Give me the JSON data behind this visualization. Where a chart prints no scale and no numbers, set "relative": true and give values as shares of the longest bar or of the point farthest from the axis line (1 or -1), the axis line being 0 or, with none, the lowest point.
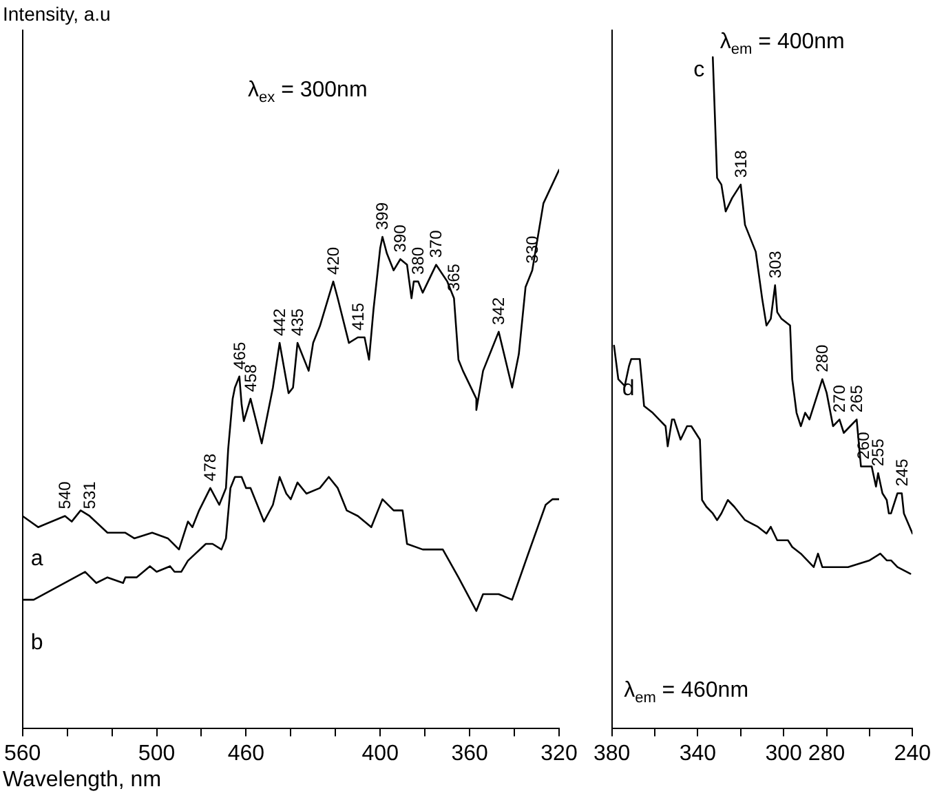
{
  "chart_data": [
    {
      "type": "line",
      "relative": true,
      "ylabel": "Intensity, a.u",
      "xlabel": "Wavelength, nm",
      "xlim": [
        560,
        320
      ],
      "tick_labels": "x",
      "grid": false,
      "legend": false,
      "marker": "none",
      "xticks": [
        560,
        {
          "value": 540,
          "label": null
        },
        {
          "value": 520,
          "label": null
        },
        500,
        {
          "value": 480,
          "label": null
        },
        460,
        {
          "value": 440,
          "label": null
        },
        {
          "value": 420,
          "label": null
        },
        400,
        {
          "value": 380,
          "label": null
        },
        360,
        {
          "value": 340,
          "label": null
        },
        320
      ],
      "series": [
        {
          "name": "a",
          "color": "#000000",
          "x": [
            560,
            553,
            541,
            538,
            534,
            530,
            522,
            514,
            510,
            502,
            495,
            490,
            486,
            484,
            481,
            476,
            472,
            469,
            468,
            466,
            465,
            463,
            462,
            461,
            458,
            453,
            448,
            445,
            441,
            439,
            437,
            432,
            430,
            427,
            421,
            419,
            414,
            410,
            407,
            405,
            403,
            400,
            399,
            397,
            394,
            391,
            388,
            386,
            385,
            383,
            381,
            375,
            370,
            367,
            365,
            363,
            357,
            357,
            354,
            347,
            341,
            338,
            335,
            332,
            327,
            320
          ],
          "values": [
            0.38,
            0.36,
            0.38,
            0.37,
            0.39,
            0.38,
            0.35,
            0.35,
            0.34,
            0.35,
            0.34,
            0.32,
            0.37,
            0.36,
            0.39,
            0.43,
            0.4,
            0.43,
            0.5,
            0.59,
            0.61,
            0.63,
            0.58,
            0.55,
            0.59,
            0.51,
            0.61,
            0.69,
            0.6,
            0.61,
            0.69,
            0.64,
            0.69,
            0.72,
            0.8,
            0.77,
            0.69,
            0.7,
            0.7,
            0.66,
            0.75,
            0.86,
            0.88,
            0.85,
            0.82,
            0.84,
            0.83,
            0.77,
            0.8,
            0.8,
            0.78,
            0.83,
            0.8,
            0.77,
            0.66,
            0.64,
            0.59,
            0.57,
            0.64,
            0.71,
            0.61,
            0.67,
            0.79,
            0.82,
            0.94,
            1.0
          ]
        },
        {
          "name": "b",
          "color": "#000000",
          "x": [
            560,
            555,
            532,
            527,
            522,
            515,
            514,
            509,
            503,
            500,
            494,
            492,
            489,
            486,
            478,
            475,
            471,
            469,
            467,
            465,
            462,
            460,
            458,
            452,
            448,
            445,
            442,
            440,
            437,
            433,
            427,
            423,
            419,
            415,
            410,
            404,
            399,
            394,
            390,
            388,
            381,
            372,
            365,
            357,
            354,
            347,
            341,
            334,
            326,
            323,
            320
          ],
          "values": [
            0.23,
            0.23,
            0.28,
            0.26,
            0.27,
            0.26,
            0.27,
            0.27,
            0.29,
            0.28,
            0.29,
            0.28,
            0.28,
            0.3,
            0.33,
            0.33,
            0.32,
            0.34,
            0.43,
            0.45,
            0.45,
            0.43,
            0.43,
            0.37,
            0.4,
            0.45,
            0.42,
            0.41,
            0.44,
            0.42,
            0.43,
            0.45,
            0.43,
            0.39,
            0.38,
            0.36,
            0.41,
            0.39,
            0.39,
            0.33,
            0.32,
            0.32,
            0.27,
            0.21,
            0.24,
            0.24,
            0.23,
            0.31,
            0.4,
            0.41,
            0.41
          ]
        }
      ],
      "annotations": [
        "λ$_{ex}$ = 300nm",
        {
          "text": "540",
          "x": 541,
          "y": 0.38
        },
        {
          "text": "531",
          "x": 530,
          "y": 0.38
        },
        {
          "text": "478",
          "x": 476,
          "y": 0.43
        },
        {
          "text": "465",
          "x": 463,
          "y": 0.63
        },
        {
          "text": "458",
          "x": 458,
          "y": 0.59
        },
        {
          "text": "442",
          "x": 445,
          "y": 0.69
        },
        {
          "text": "435",
          "x": 437,
          "y": 0.69
        },
        {
          "text": "420",
          "x": 421,
          "y": 0.8
        },
        {
          "text": "415",
          "x": 410,
          "y": 0.7
        },
        {
          "text": "399",
          "x": 399,
          "y": 0.88
        },
        {
          "text": "390",
          "x": 391,
          "y": 0.84
        },
        {
          "text": "380",
          "x": 383,
          "y": 0.8
        },
        {
          "text": "370",
          "x": 375,
          "y": 0.83
        },
        {
          "text": "365",
          "x": 367,
          "y": 0.77
        },
        {
          "text": "342",
          "x": 347,
          "y": 0.71
        },
        {
          "text": "330",
          "x": 332,
          "y": 0.82
        }
      ]
    },
    {
      "type": "line",
      "relative": true,
      "xlim": [
        380,
        240
      ],
      "tick_labels": "x",
      "grid": false,
      "legend": false,
      "marker": "none",
      "xticks": [
        380,
        {
          "value": 360,
          "label": null
        },
        340,
        {
          "value": 320,
          "label": null
        },
        300,
        280,
        {
          "value": 260,
          "label": null
        },
        240
      ],
      "series": [
        {
          "name": "c",
          "color": "#000000",
          "x": [
            333,
            331,
            329,
            327,
            324,
            320,
            318,
            313,
            310,
            308,
            306,
            304,
            303,
            301,
            297,
            296,
            294,
            292,
            290,
            288,
            282,
            280,
            277,
            274,
            272,
            269,
            266,
            264,
            263,
            259,
            257,
            256,
            254,
            252,
            251,
            250,
            247,
            245,
            244,
            240
          ],
          "values": [
            1.0,
            0.82,
            0.81,
            0.77,
            0.79,
            0.81,
            0.75,
            0.71,
            0.64,
            0.6,
            0.61,
            0.66,
            0.62,
            0.61,
            0.6,
            0.52,
            0.47,
            0.45,
            0.47,
            0.46,
            0.52,
            0.5,
            0.45,
            0.46,
            0.44,
            0.45,
            0.46,
            0.39,
            0.39,
            0.39,
            0.36,
            0.38,
            0.35,
            0.34,
            0.32,
            0.32,
            0.35,
            0.35,
            0.32,
            0.29
          ]
        },
        {
          "name": "d",
          "color": "#000000",
          "x": [
            379,
            377,
            374,
            372,
            371,
            367,
            365,
            361,
            358,
            355,
            354,
            352,
            351,
            348,
            345,
            343,
            339,
            338,
            336,
            333,
            331,
            329,
            326,
            323,
            318,
            312,
            308,
            306,
            303,
            298,
            296,
            292,
            289,
            286,
            284,
            282,
            278,
            270,
            260,
            255,
            252,
            250,
            247,
            241
          ],
          "values": [
            0.57,
            0.52,
            0.51,
            0.54,
            0.55,
            0.55,
            0.48,
            0.47,
            0.46,
            0.45,
            0.42,
            0.46,
            0.46,
            0.43,
            0.45,
            0.45,
            0.43,
            0.34,
            0.33,
            0.32,
            0.31,
            0.32,
            0.34,
            0.33,
            0.31,
            0.3,
            0.29,
            0.3,
            0.28,
            0.28,
            0.27,
            0.26,
            0.25,
            0.24,
            0.26,
            0.24,
            0.24,
            0.24,
            0.25,
            0.26,
            0.25,
            0.25,
            0.24,
            0.23
          ]
        }
      ],
      "annotations": [
        "λ$_{em}$ = 400nm",
        "λ$_{em}$ = 460nm",
        {
          "text": "318",
          "x": 320,
          "y": 0.81
        },
        {
          "text": "303",
          "x": 304,
          "y": 0.66
        },
        {
          "text": "280",
          "x": 282,
          "y": 0.52
        },
        {
          "text": "270",
          "x": 274,
          "y": 0.46
        },
        {
          "text": "265",
          "x": 266,
          "y": 0.46
        },
        {
          "text": "260",
          "x": 263,
          "y": 0.39
        },
        {
          "text": "255",
          "x": 256,
          "y": 0.38
        },
        {
          "text": "245",
          "x": 245,
          "y": 0.35
        }
      ]
    }
  ]
}
